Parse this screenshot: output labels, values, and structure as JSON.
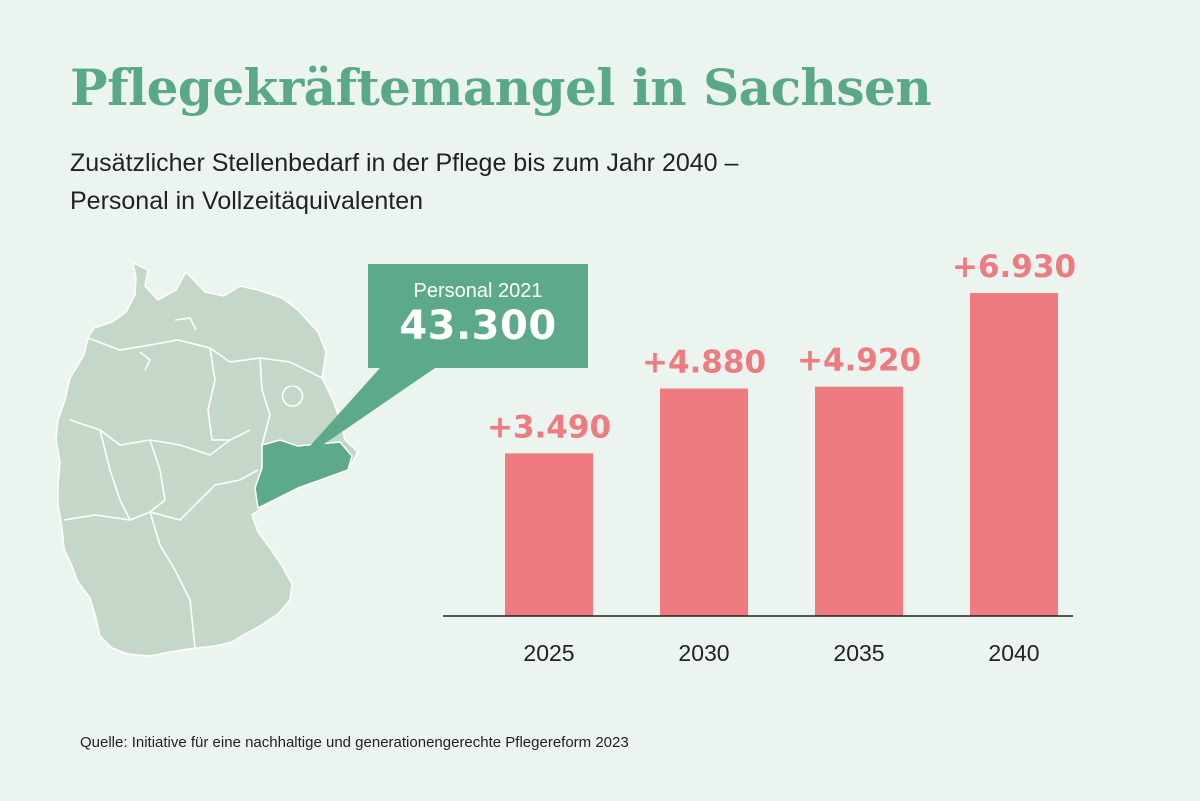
{
  "header": {
    "title": "Pflegekräftemangel in Sachsen",
    "subtitle_line1": "Zusätzlicher Stellenbedarf in der Pflege bis zum Jahr 2040 –",
    "subtitle_line2": "Personal in Vollzeitäquivalenten"
  },
  "callout": {
    "label": "Personal 2021",
    "value": "43.300"
  },
  "source": "Quelle: Initiative für eine nachhaltige und generationengerechte Pflegereform 2023",
  "colors": {
    "background": "#ecf4f0",
    "accent": "#5aa88a",
    "bar": "#ef7a80",
    "map_fill": "#c4d7c8",
    "map_highlight": "#5daa8b"
  },
  "chart_data": {
    "type": "bar",
    "categories": [
      "2025",
      "2030",
      "2035",
      "2040"
    ],
    "values": [
      3490,
      4880,
      4920,
      6930
    ],
    "value_labels": [
      "+3.490",
      "+4.880",
      "+4.920",
      "+6.930"
    ],
    "title": "",
    "xlabel": "",
    "ylabel": "",
    "ylim": [
      0,
      7000
    ],
    "grid": false
  }
}
